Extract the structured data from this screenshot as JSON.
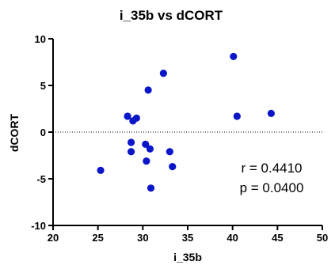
{
  "chart_data": {
    "type": "scatter",
    "title": "i_35b vs dCORT",
    "xlabel": "i_35b",
    "ylabel": "dCORT",
    "xlim": [
      20,
      50
    ],
    "ylim": [
      -10,
      10
    ],
    "xticks": [
      20,
      25,
      30,
      35,
      40,
      45,
      50
    ],
    "yticks": [
      -10,
      -5,
      0,
      5,
      10
    ],
    "grid": false,
    "reference_line": {
      "y": 0,
      "style": "dotted"
    },
    "marker_color": "#0a16c8",
    "annotations": [
      "r = 0.4410",
      "p = 0.0400"
    ],
    "points": [
      {
        "x": 25.3,
        "y": -4.1
      },
      {
        "x": 28.3,
        "y": 1.7
      },
      {
        "x": 28.7,
        "y": -1.1
      },
      {
        "x": 28.7,
        "y": -2.1
      },
      {
        "x": 28.9,
        "y": 1.2
      },
      {
        "x": 29.3,
        "y": 1.5
      },
      {
        "x": 30.3,
        "y": -1.3
      },
      {
        "x": 30.4,
        "y": -3.1
      },
      {
        "x": 30.6,
        "y": 4.5
      },
      {
        "x": 30.8,
        "y": -1.8
      },
      {
        "x": 30.9,
        "y": -6.0
      },
      {
        "x": 32.3,
        "y": 6.3
      },
      {
        "x": 33.0,
        "y": -2.1
      },
      {
        "x": 33.3,
        "y": -3.7
      },
      {
        "x": 40.1,
        "y": 8.1
      },
      {
        "x": 40.5,
        "y": 1.7
      },
      {
        "x": 44.3,
        "y": 2.0
      }
    ]
  }
}
